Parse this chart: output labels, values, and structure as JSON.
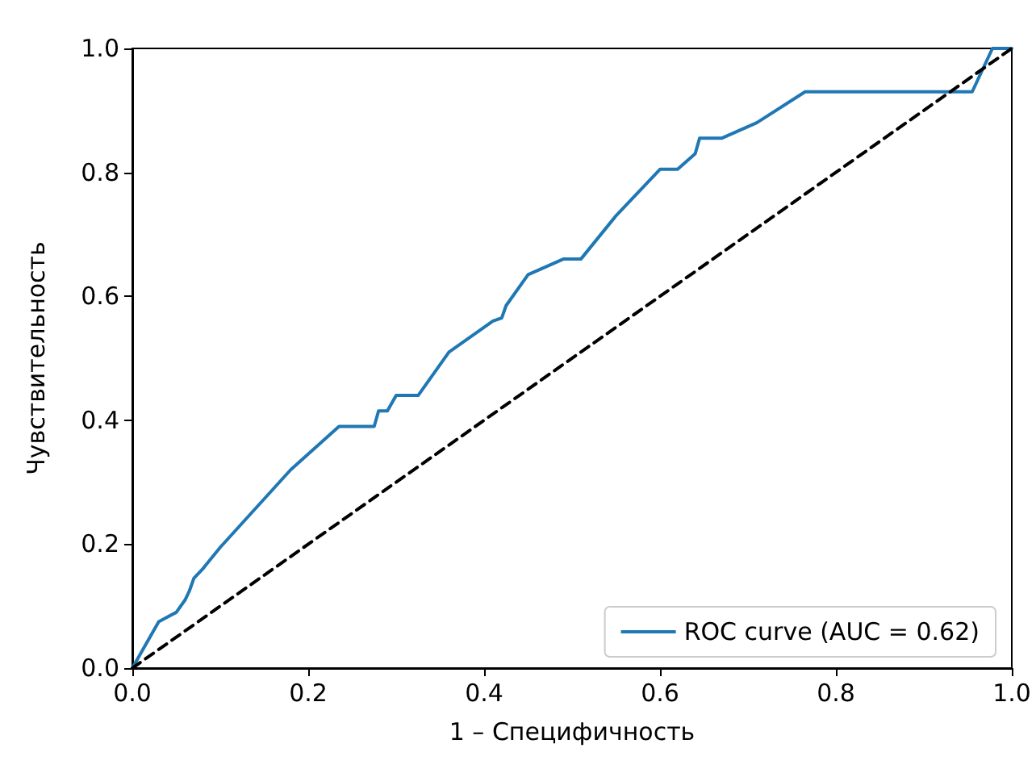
{
  "chart_data": {
    "type": "line",
    "xlabel": "1 – Специфичность",
    "ylabel": "Чувствительность",
    "xlim": [
      0,
      1
    ],
    "ylim": [
      0,
      1
    ],
    "xticks": [
      {
        "value": 0,
        "label": "0.0"
      },
      0.2,
      0.4,
      0.6,
      0.8,
      {
        "value": 1,
        "label": "1.0"
      }
    ],
    "yticks": [
      {
        "value": 0,
        "label": "0.0"
      },
      0.2,
      0.4,
      0.6,
      0.8,
      {
        "value": 1,
        "label": "1.0"
      }
    ],
    "grid": false,
    "legend": "bottom right",
    "marker": "none",
    "series": [
      {
        "name": "ROC curve (AUC = 0.62)",
        "color": "#1f77b4",
        "line_style": "solid",
        "x": [
          0,
          0.03,
          0.05,
          0.06,
          0.065,
          0.07,
          0.08,
          0.1,
          0.18,
          0.235,
          0.275,
          0.28,
          0.29,
          0.3,
          0.325,
          0.36,
          0.41,
          0.42,
          0.425,
          0.45,
          0.49,
          0.51,
          0.55,
          0.6,
          0.62,
          0.64,
          0.645,
          0.67,
          0.71,
          0.765,
          0.955,
          0.978,
          1
        ],
        "values": [
          0,
          0.075,
          0.09,
          0.11,
          0.125,
          0.145,
          0.16,
          0.195,
          0.32,
          0.39,
          0.39,
          0.415,
          0.415,
          0.44,
          0.44,
          0.51,
          0.56,
          0.565,
          0.585,
          0.635,
          0.66,
          0.66,
          0.73,
          0.805,
          0.805,
          0.83,
          0.855,
          0.855,
          0.88,
          0.93,
          0.93,
          1,
          1
        ]
      },
      {
        "color": "#000000",
        "line_style": "dashed",
        "x": [
          0,
          1
        ],
        "values": [
          0,
          1
        ]
      }
    ]
  }
}
